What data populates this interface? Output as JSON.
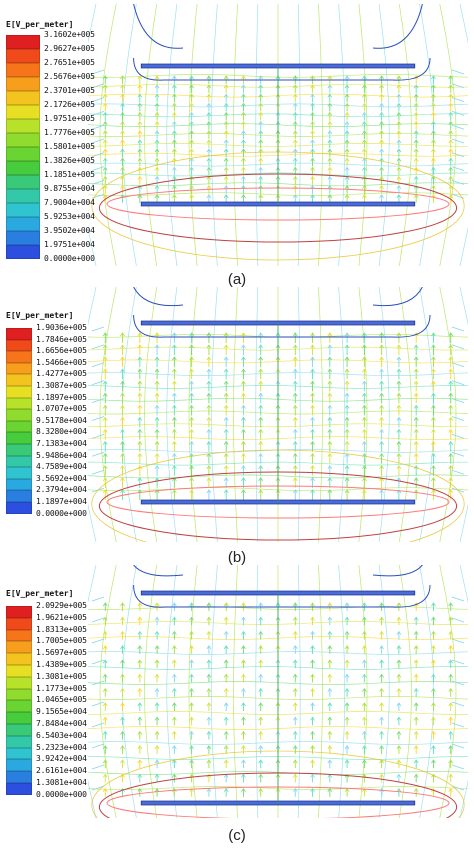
{
  "figure": {
    "legend_colors": [
      "#e02020",
      "#f04a1a",
      "#f6751a",
      "#f79e1c",
      "#f3c41f",
      "#e6df24",
      "#b8e22a",
      "#8fdc2e",
      "#69d432",
      "#46cc3c",
      "#39c978",
      "#33c9a8",
      "#2fc4cf",
      "#2aa8e0",
      "#2a7ee0",
      "#2c4fe0"
    ],
    "panels": [
      {
        "id": "a",
        "legend_title": "E[V_per_meter]",
        "ticks": [
          "3.1602e+005",
          "2.9627e+005",
          "2.7651e+005",
          "2.5676e+005",
          "2.3701e+005",
          "2.1726e+005",
          "1.9751e+005",
          "1.7776e+005",
          "1.5801e+005",
          "1.3826e+005",
          "1.1851e+005",
          "9.8755e+004",
          "7.9004e+004",
          "5.9253e+004",
          "3.9502e+004",
          "1.9751e+004",
          "0.0000e+000"
        ],
        "caption": "(a)"
      },
      {
        "id": "b",
        "legend_title": "E[V_per_meter]",
        "ticks": [
          "1.9036e+005",
          "1.7846e+005",
          "1.6656e+005",
          "1.5466e+005",
          "1.4277e+005",
          "1.3087e+005",
          "1.1897e+005",
          "1.0707e+005",
          "9.5178e+004",
          "8.3280e+004",
          "7.1383e+004",
          "5.9486e+004",
          "4.7589e+004",
          "3.5692e+004",
          "2.3794e+004",
          "1.1897e+004",
          "0.0000e+000"
        ],
        "caption": "(b)"
      },
      {
        "id": "c",
        "legend_title": "E[V_per_meter]",
        "ticks": [
          "2.0929e+005",
          "1.9621e+005",
          "1.8313e+005",
          "1.7005e+005",
          "1.5697e+005",
          "1.4389e+005",
          "1.3081e+005",
          "1.1773e+005",
          "1.0465e+005",
          "9.1565e+004",
          "7.8484e+004",
          "6.5403e+004",
          "5.2323e+004",
          "3.9242e+004",
          "2.6161e+004",
          "1.3081e+004",
          "0.0000e+000"
        ],
        "caption": "(c)"
      }
    ]
  }
}
